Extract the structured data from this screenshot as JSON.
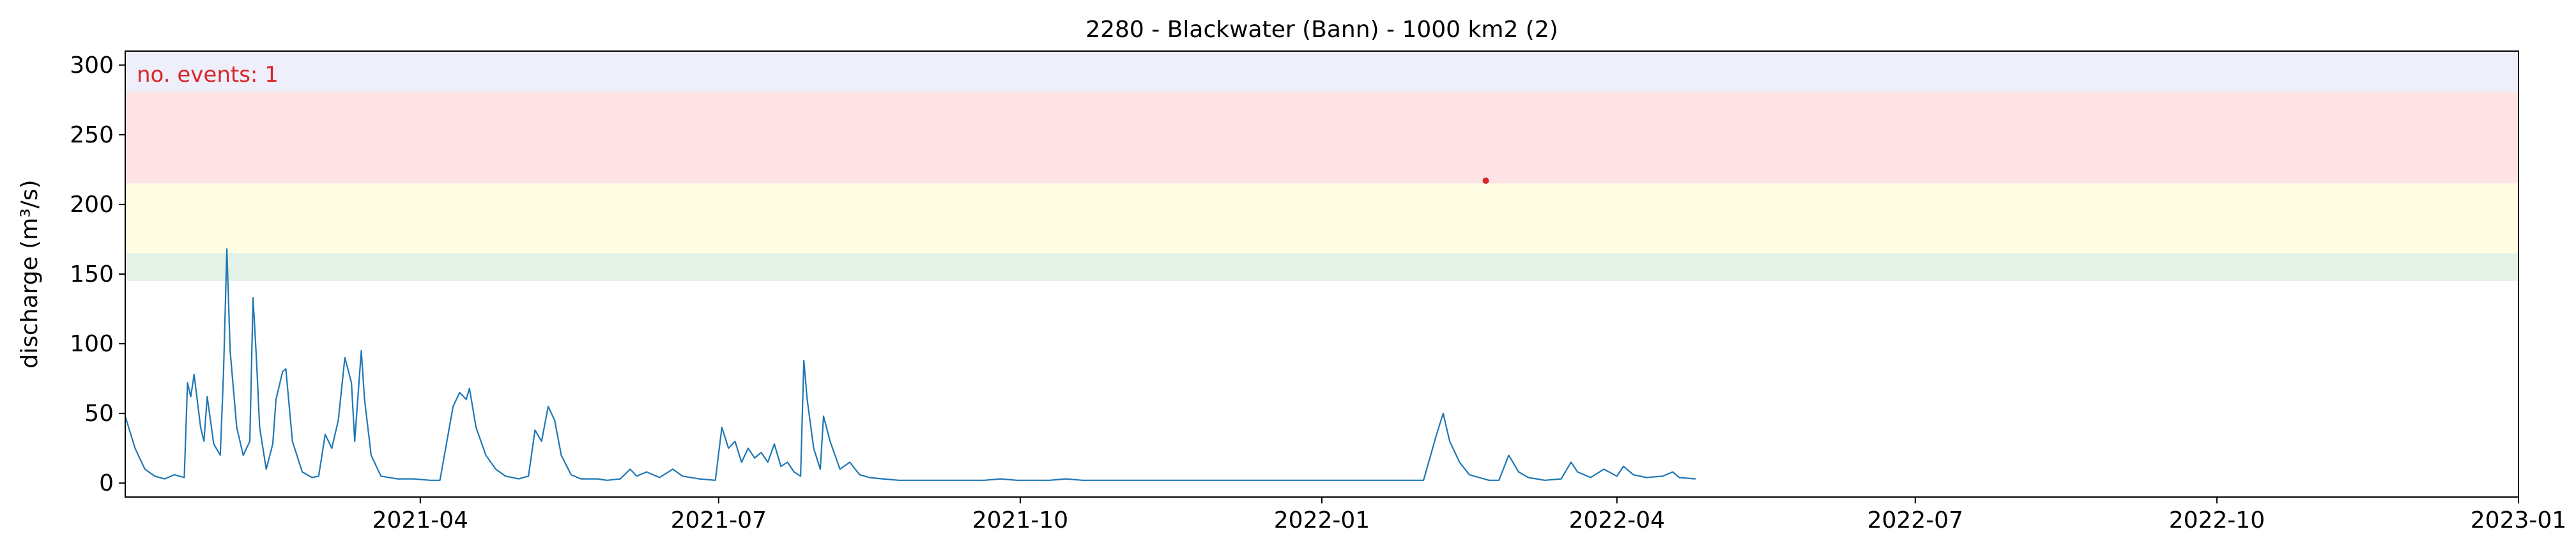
{
  "chart_data": {
    "type": "line",
    "title": "2280 - Blackwater (Bann) - 1000 km2 (2)",
    "xlabel": "",
    "ylabel": "discharge (m³/s)",
    "xlim": [
      "2021-01-01",
      "2023-01-01"
    ],
    "ylim": [
      -10,
      310
    ],
    "xticks": [
      "2021-04",
      "2021-07",
      "2021-10",
      "2022-01",
      "2022-04",
      "2022-07",
      "2022-10",
      "2023-01"
    ],
    "yticks": [
      0,
      50,
      100,
      150,
      200,
      250,
      300
    ],
    "grid": false,
    "annotation": "no. events: 1",
    "threshold_bands": [
      {
        "from": 145,
        "to": 165,
        "color": "#e3f1e6"
      },
      {
        "from": 215,
        "to": 165,
        "color": "#fefde3"
      },
      {
        "from": 215,
        "to": 281,
        "color": "#fde3e6"
      },
      {
        "from": 281,
        "to": 310,
        "color": "#efeefb"
      }
    ],
    "series": [
      {
        "color": "#1f77b4",
        "points": [
          [
            "2021-01-01",
            48
          ],
          [
            "2021-01-04",
            25
          ],
          [
            "2021-01-07",
            10
          ],
          [
            "2021-01-10",
            5
          ],
          [
            "2021-01-13",
            3
          ],
          [
            "2021-01-16",
            6
          ],
          [
            "2021-01-19",
            4
          ],
          [
            "2021-01-20",
            72
          ],
          [
            "2021-01-21",
            62
          ],
          [
            "2021-01-22",
            78
          ],
          [
            "2021-01-24",
            40
          ],
          [
            "2021-01-25",
            30
          ],
          [
            "2021-01-26",
            62
          ],
          [
            "2021-01-28",
            28
          ],
          [
            "2021-01-30",
            20
          ],
          [
            "2021-01-31",
            80
          ],
          [
            "2021-02-01",
            168
          ],
          [
            "2021-02-02",
            95
          ],
          [
            "2021-02-04",
            40
          ],
          [
            "2021-02-06",
            20
          ],
          [
            "2021-02-08",
            30
          ],
          [
            "2021-02-09",
            133
          ],
          [
            "2021-02-10",
            90
          ],
          [
            "2021-02-11",
            40
          ],
          [
            "2021-02-13",
            10
          ],
          [
            "2021-02-15",
            28
          ],
          [
            "2021-02-16",
            60
          ],
          [
            "2021-02-18",
            80
          ],
          [
            "2021-02-19",
            82
          ],
          [
            "2021-02-21",
            30
          ],
          [
            "2021-02-24",
            8
          ],
          [
            "2021-02-27",
            4
          ],
          [
            "2021-03-01",
            5
          ],
          [
            "2021-03-03",
            35
          ],
          [
            "2021-03-05",
            25
          ],
          [
            "2021-03-07",
            45
          ],
          [
            "2021-03-09",
            90
          ],
          [
            "2021-03-11",
            72
          ],
          [
            "2021-03-12",
            30
          ],
          [
            "2021-03-14",
            95
          ],
          [
            "2021-03-15",
            60
          ],
          [
            "2021-03-17",
            20
          ],
          [
            "2021-03-20",
            5
          ],
          [
            "2021-03-25",
            3
          ],
          [
            "2021-03-30",
            3
          ],
          [
            "2021-04-04",
            2
          ],
          [
            "2021-04-07",
            2
          ],
          [
            "2021-04-11",
            55
          ],
          [
            "2021-04-13",
            65
          ],
          [
            "2021-04-15",
            60
          ],
          [
            "2021-04-16",
            68
          ],
          [
            "2021-04-18",
            40
          ],
          [
            "2021-04-21",
            20
          ],
          [
            "2021-04-24",
            10
          ],
          [
            "2021-04-27",
            5
          ],
          [
            "2021-05-01",
            3
          ],
          [
            "2021-05-04",
            5
          ],
          [
            "2021-05-06",
            38
          ],
          [
            "2021-05-08",
            30
          ],
          [
            "2021-05-10",
            55
          ],
          [
            "2021-05-12",
            45
          ],
          [
            "2021-05-14",
            20
          ],
          [
            "2021-05-17",
            6
          ],
          [
            "2021-05-20",
            3
          ],
          [
            "2021-05-25",
            3
          ],
          [
            "2021-05-28",
            2
          ],
          [
            "2021-06-01",
            3
          ],
          [
            "2021-06-04",
            10
          ],
          [
            "2021-06-06",
            5
          ],
          [
            "2021-06-09",
            8
          ],
          [
            "2021-06-13",
            4
          ],
          [
            "2021-06-17",
            10
          ],
          [
            "2021-06-20",
            5
          ],
          [
            "2021-06-25",
            3
          ],
          [
            "2021-06-30",
            2
          ],
          [
            "2021-07-02",
            40
          ],
          [
            "2021-07-04",
            25
          ],
          [
            "2021-07-06",
            30
          ],
          [
            "2021-07-08",
            15
          ],
          [
            "2021-07-10",
            25
          ],
          [
            "2021-07-12",
            18
          ],
          [
            "2021-07-14",
            22
          ],
          [
            "2021-07-16",
            15
          ],
          [
            "2021-07-18",
            28
          ],
          [
            "2021-07-20",
            12
          ],
          [
            "2021-07-22",
            15
          ],
          [
            "2021-07-24",
            8
          ],
          [
            "2021-07-26",
            5
          ],
          [
            "2021-07-27",
            88
          ],
          [
            "2021-07-28",
            60
          ],
          [
            "2021-07-30",
            25
          ],
          [
            "2021-08-01",
            10
          ],
          [
            "2021-08-02",
            48
          ],
          [
            "2021-08-04",
            30
          ],
          [
            "2021-08-07",
            10
          ],
          [
            "2021-08-10",
            15
          ],
          [
            "2021-08-13",
            6
          ],
          [
            "2021-08-16",
            4
          ],
          [
            "2021-08-20",
            3
          ],
          [
            "2021-08-25",
            2
          ],
          [
            "2021-09-01",
            2
          ],
          [
            "2021-09-10",
            2
          ],
          [
            "2021-09-20",
            2
          ],
          [
            "2021-09-25",
            3
          ],
          [
            "2021-09-30",
            2
          ],
          [
            "2021-10-05",
            2
          ],
          [
            "2021-10-10",
            2
          ],
          [
            "2021-10-15",
            3
          ],
          [
            "2021-10-20",
            2
          ],
          [
            "2021-10-25",
            2
          ],
          [
            "2021-11-01",
            2
          ],
          [
            "2021-11-10",
            2
          ],
          [
            "2021-11-20",
            2
          ],
          [
            "2021-12-01",
            2
          ],
          [
            "2021-12-10",
            2
          ],
          [
            "2021-12-20",
            2
          ],
          [
            "2021-12-25",
            2
          ],
          [
            "2022-01-01",
            2
          ],
          [
            "2022-01-10",
            2
          ],
          [
            "2022-01-20",
            2
          ],
          [
            "2022-02-01",
            2
          ],
          [
            "2022-02-05",
            35
          ],
          [
            "2022-02-07",
            50
          ],
          [
            "2022-02-09",
            30
          ],
          [
            "2022-02-12",
            15
          ],
          [
            "2022-02-15",
            6
          ],
          [
            "2022-02-18",
            4
          ],
          [
            "2022-02-21",
            2
          ],
          [
            "2022-02-24",
            2
          ],
          [
            "2022-02-27",
            20
          ],
          [
            "2022-03-02",
            8
          ],
          [
            "2022-03-05",
            4
          ],
          [
            "2022-03-10",
            2
          ],
          [
            "2022-03-15",
            3
          ],
          [
            "2022-03-18",
            15
          ],
          [
            "2022-03-20",
            8
          ],
          [
            "2022-03-24",
            4
          ],
          [
            "2022-03-28",
            10
          ],
          [
            "2022-04-01",
            5
          ],
          [
            "2022-04-03",
            12
          ],
          [
            "2022-04-06",
            6
          ],
          [
            "2022-04-10",
            4
          ],
          [
            "2022-04-15",
            5
          ],
          [
            "2022-04-18",
            8
          ],
          [
            "2022-04-20",
            4
          ],
          [
            "2022-04-25",
            3
          ]
        ]
      }
    ],
    "event_marker": {
      "x": "2022-02-20",
      "y": 217,
      "color": "#d62728"
    }
  }
}
